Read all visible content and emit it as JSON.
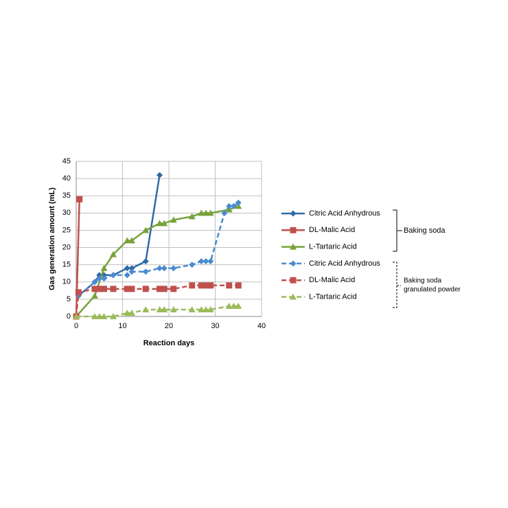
{
  "chart_data": {
    "type": "line",
    "y_label": "Gas generation amount (mL)",
    "x_label": "Reaction days",
    "xlim": [
      0,
      40
    ],
    "xticks": [
      0,
      10,
      20,
      30,
      40
    ],
    "ylim": [
      0,
      45
    ],
    "yticks": [
      0,
      5,
      10,
      15,
      20,
      25,
      30,
      35,
      40,
      45
    ],
    "grid": true,
    "series": [
      {
        "name": "Citric Acid Anhydrous",
        "color": "#2e6aa6",
        "marker": "diamond",
        "dashed": false,
        "x": [
          0.5,
          4,
          5,
          6,
          8,
          11,
          12,
          15,
          18
        ],
        "values": [
          6,
          10,
          12,
          12,
          12,
          14,
          14,
          16,
          41
        ]
      },
      {
        "name": "DL-Malic  Acid",
        "color": "#c0504d",
        "marker": "square",
        "dashed": false,
        "x": [
          0,
          0.7
        ],
        "values": [
          0,
          34
        ]
      },
      {
        "name": "L-Tartaric Acid",
        "color": "#77a33a",
        "marker": "triangle",
        "dashed": false,
        "x": [
          0,
          4,
          6,
          8,
          11,
          12,
          15,
          18,
          19,
          21,
          25,
          27,
          28,
          29,
          33,
          35
        ],
        "values": [
          0,
          6,
          14,
          18,
          22,
          22,
          25,
          27,
          27,
          28,
          29,
          30,
          30,
          30,
          31,
          32
        ]
      },
      {
        "name": "Citric Acid Anhydrous",
        "color": "#4a8bd0",
        "marker": "diamond",
        "dashed": true,
        "x": [
          0.5,
          4,
          5,
          6,
          8,
          11,
          12,
          15,
          18,
          19,
          21,
          25,
          27,
          28,
          29,
          32,
          33,
          34,
          35
        ],
        "values": [
          6,
          10,
          11,
          11,
          12,
          12,
          13,
          13,
          14,
          14,
          14,
          15,
          16,
          16,
          16,
          30,
          32,
          32,
          33
        ]
      },
      {
        "name": "DL-Malic  Acid",
        "color": "#c0504d",
        "marker": "square",
        "dashed": true,
        "x": [
          0,
          0.5,
          4,
          5,
          6,
          8,
          11,
          12,
          15,
          18,
          19,
          21,
          25,
          27,
          28,
          29,
          33,
          35
        ],
        "values": [
          0,
          7,
          8,
          8,
          8,
          8,
          8,
          8,
          8,
          8,
          8,
          8,
          9,
          9,
          9,
          9,
          9,
          9
        ]
      },
      {
        "name": "L-Tartaric Acid",
        "color": "#9bbb59",
        "marker": "triangle",
        "dashed": true,
        "x": [
          0,
          4,
          5,
          6,
          8,
          11,
          12,
          15,
          18,
          19,
          21,
          25,
          27,
          28,
          29,
          33,
          34,
          35
        ],
        "values": [
          0,
          0,
          0,
          0,
          0,
          1,
          1,
          2,
          2,
          2,
          2,
          2,
          2,
          2,
          2,
          3,
          3,
          3
        ]
      }
    ],
    "group_labels": {
      "solid": "Baking soda",
      "dashed": [
        "Baking soda",
        "granulated powder"
      ]
    }
  }
}
